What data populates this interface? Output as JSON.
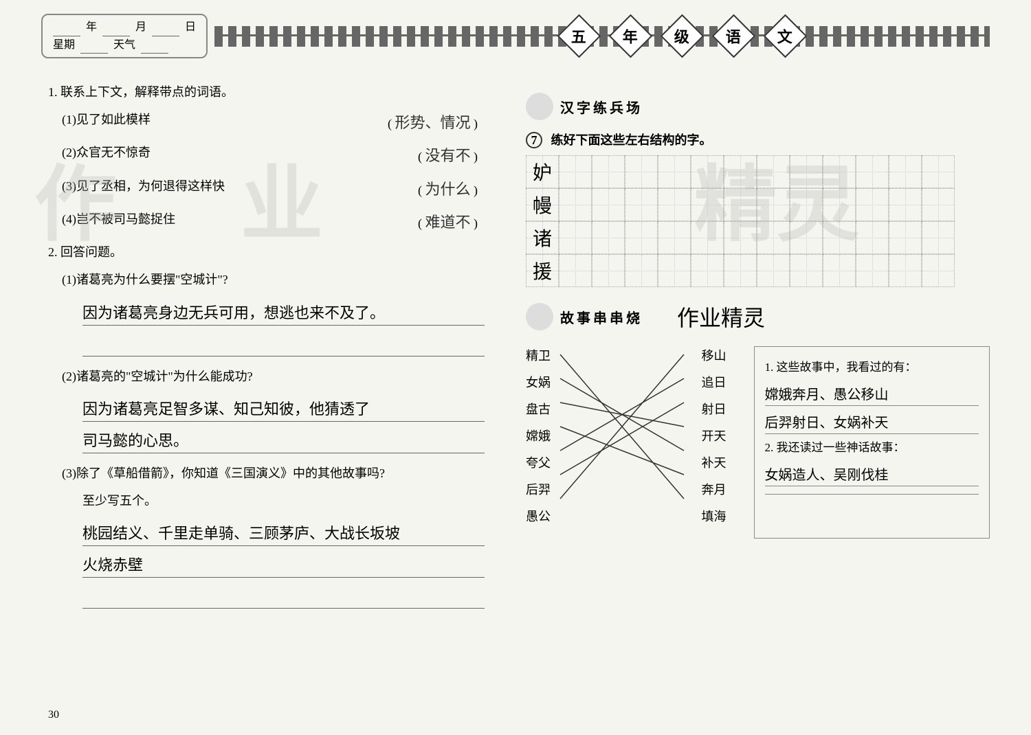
{
  "header": {
    "year_label": "年",
    "month_label": "月",
    "day_label": "日",
    "weekday_label": "星期",
    "weather_label": "天气",
    "title_chars": [
      "五",
      "年",
      "级",
      "语",
      "文"
    ]
  },
  "left": {
    "q1_title": "1. 联系上下文，解释带点的词语。",
    "q1_items": [
      {
        "text": "(1)见了如此模样",
        "answer": "形势、情况"
      },
      {
        "text": "(2)众官无不惊奇",
        "answer": "没有不"
      },
      {
        "text": "(3)见了丞相，为何退得这样快",
        "answer": "为什么"
      },
      {
        "text": "(4)岂不被司马懿捉住",
        "answer": "难道不"
      }
    ],
    "q2_title": "2. 回答问题。",
    "q2_sub1": "(1)诸葛亮为什么要摆\"空城计\"?",
    "q2_ans1": "因为诸葛亮身边无兵可用，想逃也来不及了。",
    "q2_sub2": "(2)诸葛亮的\"空城计\"为什么能成功?",
    "q2_ans2a": "因为诸葛亮足智多谋、知己知彼，他猜透了",
    "q2_ans2b": "司马懿的心思。",
    "q2_sub3": "(3)除了《草船借箭》，你知道《三国演义》中的其他故事吗?",
    "q2_sub3b": "至少写五个。",
    "q2_ans3a": "桃园结义、千里走单骑、三顾茅庐、大战长坂坡",
    "q2_ans3b": "火烧赤壁"
  },
  "right": {
    "section1_title": "汉字练兵场",
    "practice_num": "7",
    "practice_text": "练好下面这些左右结构的字。",
    "practice_chars": [
      "妒",
      "幔",
      "诸",
      "援"
    ],
    "grid_cols": 13,
    "section2_title": "故事串串烧",
    "section2_note": "作业精灵",
    "match_left": [
      "精卫",
      "女娲",
      "盘古",
      "嫦娥",
      "夸父",
      "后羿",
      "愚公"
    ],
    "match_right": [
      "移山",
      "追日",
      "射日",
      "开天",
      "补天",
      "奔月",
      "填海"
    ],
    "match_connections": [
      [
        0,
        6
      ],
      [
        1,
        4
      ],
      [
        2,
        3
      ],
      [
        3,
        5
      ],
      [
        4,
        1
      ],
      [
        5,
        2
      ],
      [
        6,
        0
      ]
    ],
    "story_q1": "1. 这些故事中，我看过的有：",
    "story_a1a": "嫦娥奔月、愚公移山",
    "story_a1b": "后羿射日、女娲补天",
    "story_q2": "2. 我还读过一些神话故事：",
    "story_a2": "女娲造人、吴刚伐桂"
  },
  "page_number": "30",
  "watermarks": [
    "作",
    "业",
    "精灵"
  ],
  "colors": {
    "bg": "#f5f5f0",
    "text": "#333333",
    "border": "#888888",
    "grid_dot": "#aaaaaa"
  }
}
